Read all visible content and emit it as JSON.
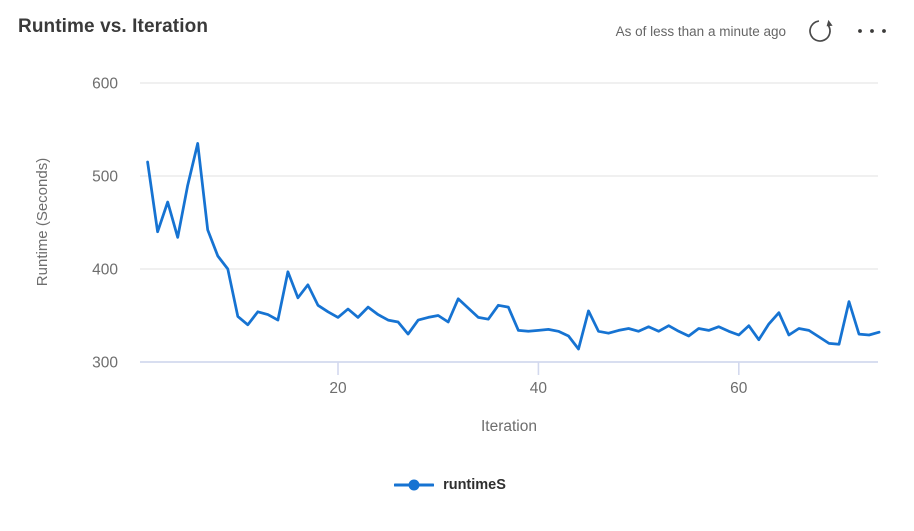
{
  "header": {
    "title": "Runtime vs. Iteration",
    "freshness": "As of less than a minute ago",
    "refresh_icon": "refresh",
    "more_icon": "ellipsis"
  },
  "chart_data": {
    "type": "line",
    "title": "Runtime vs. Iteration",
    "xlabel": "Iteration",
    "ylabel": "Runtime (Seconds)",
    "x_ticks": [
      20,
      40,
      60
    ],
    "y_ticks": [
      600,
      500,
      400,
      300
    ],
    "xlim": [
      1,
      74
    ],
    "ylim": [
      300,
      600
    ],
    "grid": "horizontal",
    "legend_position": "bottom-center",
    "series": [
      {
        "name": "runtimeS",
        "color": "#1673d2",
        "x_start": 1,
        "x_step": 1,
        "values": [
          515,
          440,
          472,
          434,
          490,
          535,
          442,
          414,
          400,
          349,
          340,
          354,
          351,
          345,
          397,
          369,
          383,
          361,
          354,
          348,
          357,
          348,
          359,
          351,
          345,
          343,
          330,
          345,
          348,
          350,
          343,
          368,
          358,
          348,
          346,
          361,
          359,
          334,
          333,
          334,
          335,
          333,
          328,
          314,
          355,
          333,
          331,
          334,
          336,
          333,
          338,
          333,
          339,
          333,
          328,
          336,
          334,
          338,
          333,
          329,
          339,
          324,
          341,
          353,
          329,
          336,
          334,
          327,
          320,
          319,
          365,
          330,
          329,
          332
        ]
      }
    ]
  },
  "colors": {
    "line": "#1673d2",
    "grid": "#ececec",
    "axis": "#d3d9ee",
    "tick_text": "#6e6e6e",
    "title_text": "#3a3a3a",
    "muted_text": "#666666",
    "icon": "#4a4a4a",
    "legend_text": "#2f2f2f"
  }
}
